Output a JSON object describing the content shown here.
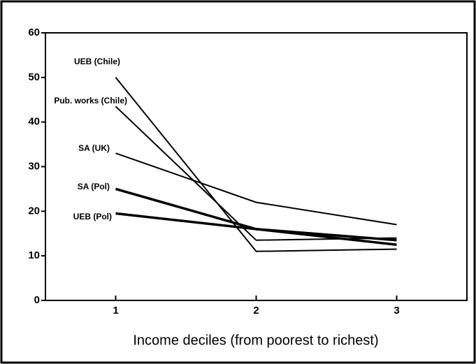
{
  "chart_data": {
    "type": "line",
    "xlabel": "Income deciles (from poorest to richest)",
    "x": [
      1,
      2,
      3
    ],
    "series": [
      {
        "name": "UEB (Chile)",
        "color": "#000000",
        "width": 2,
        "values": [
          50,
          11,
          11.5
        ]
      },
      {
        "name": "Pub. works (Chile)",
        "color": "#000000",
        "width": 2,
        "values": [
          43.5,
          13.5,
          14
        ]
      },
      {
        "name": "SA (UK)",
        "color": "#000000",
        "width": 2,
        "values": [
          33,
          22,
          17
        ]
      },
      {
        "name": "SA (Pol)",
        "color": "#000000",
        "width": 3.5,
        "values": [
          25,
          16,
          12.5
        ]
      },
      {
        "name": "UEB (Pol)",
        "color": "#000000",
        "width": 3.5,
        "values": [
          19.5,
          16,
          13.5
        ]
      }
    ],
    "xlim": [
      0.5,
      3.5
    ],
    "xticks": [
      1,
      2,
      3
    ],
    "ylim": [
      0,
      60
    ],
    "yticks": [
      0,
      10,
      20,
      30,
      40,
      50,
      60
    ]
  }
}
